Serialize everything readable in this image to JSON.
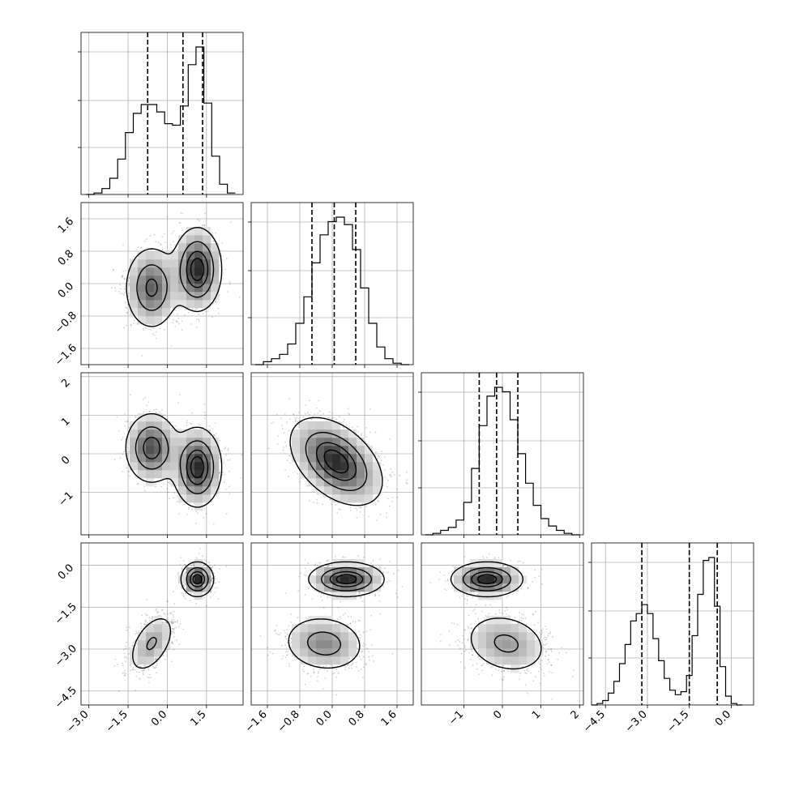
{
  "chart_data": {
    "type": "corner",
    "n_params": 4,
    "params": [
      {
        "range": [
          -3.3,
          2.9
        ],
        "ticks": [
          -3.0,
          -1.5,
          0.0,
          1.5
        ],
        "tick_labels": [
          "−3.0",
          "−1.5",
          "0.0",
          "1.5"
        ]
      },
      {
        "range": [
          -2.0,
          2.0
        ],
        "ticks": [
          -1.6,
          -0.8,
          0.0,
          0.8,
          1.6
        ],
        "tick_labels": [
          "−1.6",
          "−0.8",
          "0.0",
          "0.8",
          "1.6"
        ]
      },
      {
        "range": [
          -2.1,
          2.1
        ],
        "ticks": [
          -1,
          0,
          1,
          2
        ],
        "tick_labels": [
          "−1",
          "0",
          "1",
          "2"
        ]
      },
      {
        "range": [
          -5.0,
          0.8
        ],
        "ticks": [
          -4.5,
          -3.0,
          -1.5,
          0.0
        ],
        "tick_labels": [
          "−4.5",
          "−3.0",
          "−1.5",
          "0.0"
        ]
      }
    ],
    "histograms": [
      {
        "param": 0,
        "edges": [
          -3.1,
          -2.8,
          -2.5,
          -2.2,
          -1.9,
          -1.6,
          -1.3,
          -1.0,
          -0.7,
          -0.4,
          -0.1,
          0.2,
          0.5,
          0.8,
          1.1,
          1.4,
          1.7,
          2.0,
          2.3,
          2.6
        ],
        "counts": [
          0.0,
          0.01,
          0.04,
          0.11,
          0.24,
          0.42,
          0.55,
          0.61,
          0.61,
          0.56,
          0.48,
          0.47,
          0.6,
          0.88,
          1.0,
          0.62,
          0.26,
          0.07,
          0.01
        ],
        "quantiles": [
          -0.75,
          0.6,
          1.35
        ]
      },
      {
        "param": 1,
        "edges": [
          -1.9,
          -1.7,
          -1.5,
          -1.3,
          -1.1,
          -0.9,
          -0.7,
          -0.5,
          -0.3,
          -0.1,
          0.1,
          0.3,
          0.5,
          0.7,
          0.9,
          1.1,
          1.3,
          1.5,
          1.7,
          1.9
        ],
        "counts": [
          0.0,
          0.02,
          0.04,
          0.07,
          0.14,
          0.28,
          0.46,
          0.69,
          0.88,
          0.97,
          1.0,
          0.95,
          0.78,
          0.52,
          0.28,
          0.12,
          0.04,
          0.01,
          0.0
        ],
        "quantiles": [
          -0.5,
          0.05,
          0.58
        ]
      },
      {
        "param": 2,
        "edges": [
          -2.0,
          -1.8,
          -1.6,
          -1.4,
          -1.2,
          -1.0,
          -0.8,
          -0.6,
          -0.4,
          -0.2,
          0.0,
          0.2,
          0.4,
          0.6,
          0.8,
          1.0,
          1.2,
          1.4,
          1.6,
          1.8,
          2.0
        ],
        "counts": [
          0.0,
          0.01,
          0.03,
          0.05,
          0.1,
          0.22,
          0.45,
          0.74,
          0.94,
          1.0,
          0.97,
          0.78,
          0.55,
          0.35,
          0.2,
          0.11,
          0.06,
          0.03,
          0.01,
          0.0
        ],
        "quantiles": [
          -0.6,
          -0.15,
          0.4
        ]
      },
      {
        "param": 3,
        "edges": [
          -5.0,
          -4.8,
          -4.6,
          -4.4,
          -4.2,
          -4.0,
          -3.8,
          -3.6,
          -3.4,
          -3.2,
          -3.0,
          -2.8,
          -2.6,
          -2.4,
          -2.2,
          -2.0,
          -1.8,
          -1.6,
          -1.4,
          -1.2,
          -1.0,
          -0.8,
          -0.6,
          -0.4,
          -0.2,
          0.0,
          0.2,
          0.4
        ],
        "counts": [
          0.0,
          0.01,
          0.03,
          0.08,
          0.16,
          0.28,
          0.41,
          0.57,
          0.62,
          0.68,
          0.62,
          0.45,
          0.3,
          0.18,
          0.1,
          0.07,
          0.09,
          0.2,
          0.47,
          0.75,
          0.98,
          1.0,
          0.67,
          0.26,
          0.06,
          0.01,
          0.0
        ],
        "quantiles": [
          -3.2,
          -1.5,
          -0.5
        ]
      }
    ],
    "joint": [
      {
        "x": 0,
        "y": 1,
        "components": [
          {
            "mx": -0.6,
            "my": -0.1,
            "sx": 0.5,
            "sy": 0.5,
            "rho": 0.0,
            "w": 0.45
          },
          {
            "mx": 1.15,
            "my": 0.35,
            "sx": 0.45,
            "sy": 0.5,
            "rho": 0.0,
            "w": 0.55
          }
        ]
      },
      {
        "x": 0,
        "y": 2,
        "components": [
          {
            "mx": -0.6,
            "my": 0.15,
            "sx": 0.5,
            "sy": 0.45,
            "rho": 0.0,
            "w": 0.45
          },
          {
            "mx": 1.15,
            "my": -0.35,
            "sx": 0.45,
            "sy": 0.5,
            "rho": 0.0,
            "w": 0.55
          }
        ]
      },
      {
        "x": 1,
        "y": 2,
        "components": [
          {
            "mx": 0.1,
            "my": -0.2,
            "sx": 0.55,
            "sy": 0.55,
            "rho": -0.45,
            "w": 1.0
          }
        ]
      },
      {
        "x": 0,
        "y": 3,
        "components": [
          {
            "mx": -0.6,
            "my": -2.8,
            "sx": 0.45,
            "sy": 0.55,
            "rho": 0.5,
            "w": 0.5
          },
          {
            "mx": 1.15,
            "my": -0.5,
            "sx": 0.3,
            "sy": 0.3,
            "rho": 0.0,
            "w": 0.5
          }
        ]
      },
      {
        "x": 1,
        "y": 3,
        "components": [
          {
            "mx": -0.2,
            "my": -2.8,
            "sx": 0.5,
            "sy": 0.5,
            "rho": -0.1,
            "w": 0.5
          },
          {
            "mx": 0.35,
            "my": -0.5,
            "sx": 0.45,
            "sy": 0.3,
            "rho": 0.0,
            "w": 0.5
          }
        ]
      },
      {
        "x": 2,
        "y": 3,
        "components": [
          {
            "mx": 0.1,
            "my": -2.8,
            "sx": 0.55,
            "sy": 0.55,
            "rho": -0.2,
            "w": 0.5
          },
          {
            "mx": -0.4,
            "my": -0.5,
            "sx": 0.45,
            "sy": 0.3,
            "rho": 0.0,
            "w": 0.5
          }
        ]
      }
    ],
    "contour_levels": [
      0.118,
      0.393,
      0.675,
      0.865
    ],
    "grid": true,
    "xlabel": "",
    "ylabel": "",
    "title": ""
  }
}
